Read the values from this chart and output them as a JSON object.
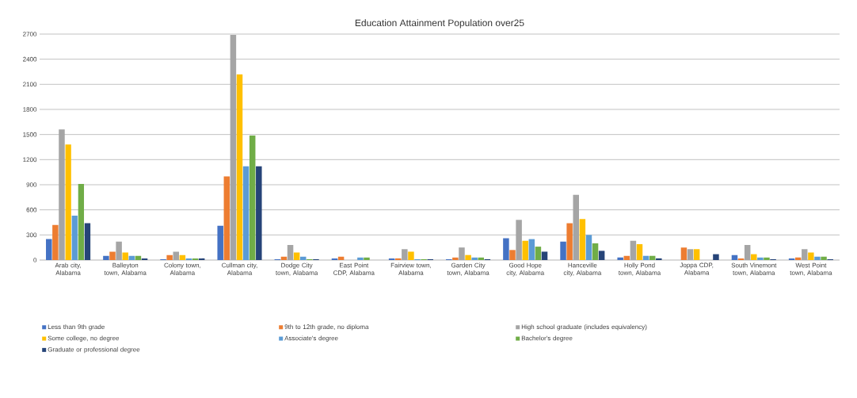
{
  "chart_data": {
    "type": "bar",
    "title": "Education Attainment Population over25",
    "categories": [
      "Arab city, Alabama",
      "Balleyton town, Alabama",
      "Colony town, Alabama",
      "Cullman city, Alabama",
      "Dodge City town, Alabama",
      "East Point CDP, Alabama",
      "Fairview town, Alabama",
      "Garden City town, Alabama",
      "Good Hope city, Alabama",
      "Hanceville city, Alabama",
      "Holly Pond town, Alabama",
      "Joppa CDP, Alabama",
      "South Vinemont town, Alabama",
      "West Point town, Alabama"
    ],
    "series": [
      {
        "name": "Less than 9th grade",
        "color": "#4472c4",
        "values": [
          250,
          50,
          10,
          410,
          10,
          20,
          20,
          10,
          260,
          220,
          30,
          0,
          60,
          20
        ]
      },
      {
        "name": "9th to 12th grade, no diploma",
        "color": "#ed7d31",
        "values": [
          420,
          100,
          60,
          1000,
          40,
          40,
          20,
          30,
          120,
          440,
          50,
          150,
          20,
          30
        ]
      },
      {
        "name": "High school graduate (includes equivalency)",
        "color": "#a5a5a5",
        "values": [
          1560,
          220,
          100,
          2690,
          180,
          0,
          130,
          150,
          480,
          780,
          230,
          130,
          180,
          130
        ]
      },
      {
        "name": "Some college, no degree",
        "color": "#ffc000",
        "values": [
          1380,
          90,
          60,
          2220,
          90,
          0,
          100,
          60,
          230,
          490,
          190,
          130,
          70,
          90
        ]
      },
      {
        "name": "Associate's degree",
        "color": "#5b9bd5",
        "values": [
          530,
          50,
          20,
          1120,
          40,
          30,
          10,
          30,
          250,
          300,
          50,
          0,
          30,
          40
        ]
      },
      {
        "name": "Bachelor's degree",
        "color": "#70ad47",
        "values": [
          910,
          50,
          20,
          1490,
          10,
          30,
          10,
          30,
          160,
          200,
          50,
          0,
          30,
          40
        ]
      },
      {
        "name": "Graduate or professional degree",
        "color": "#264478",
        "values": [
          440,
          20,
          20,
          1120,
          10,
          0,
          10,
          10,
          100,
          110,
          20,
          70,
          10,
          10
        ]
      }
    ],
    "ylim": [
      0,
      2700
    ],
    "yticks": [
      0,
      300,
      600,
      900,
      1200,
      1500,
      1800,
      2100,
      2400,
      2700
    ],
    "grid": "y",
    "legend": "bottom"
  }
}
